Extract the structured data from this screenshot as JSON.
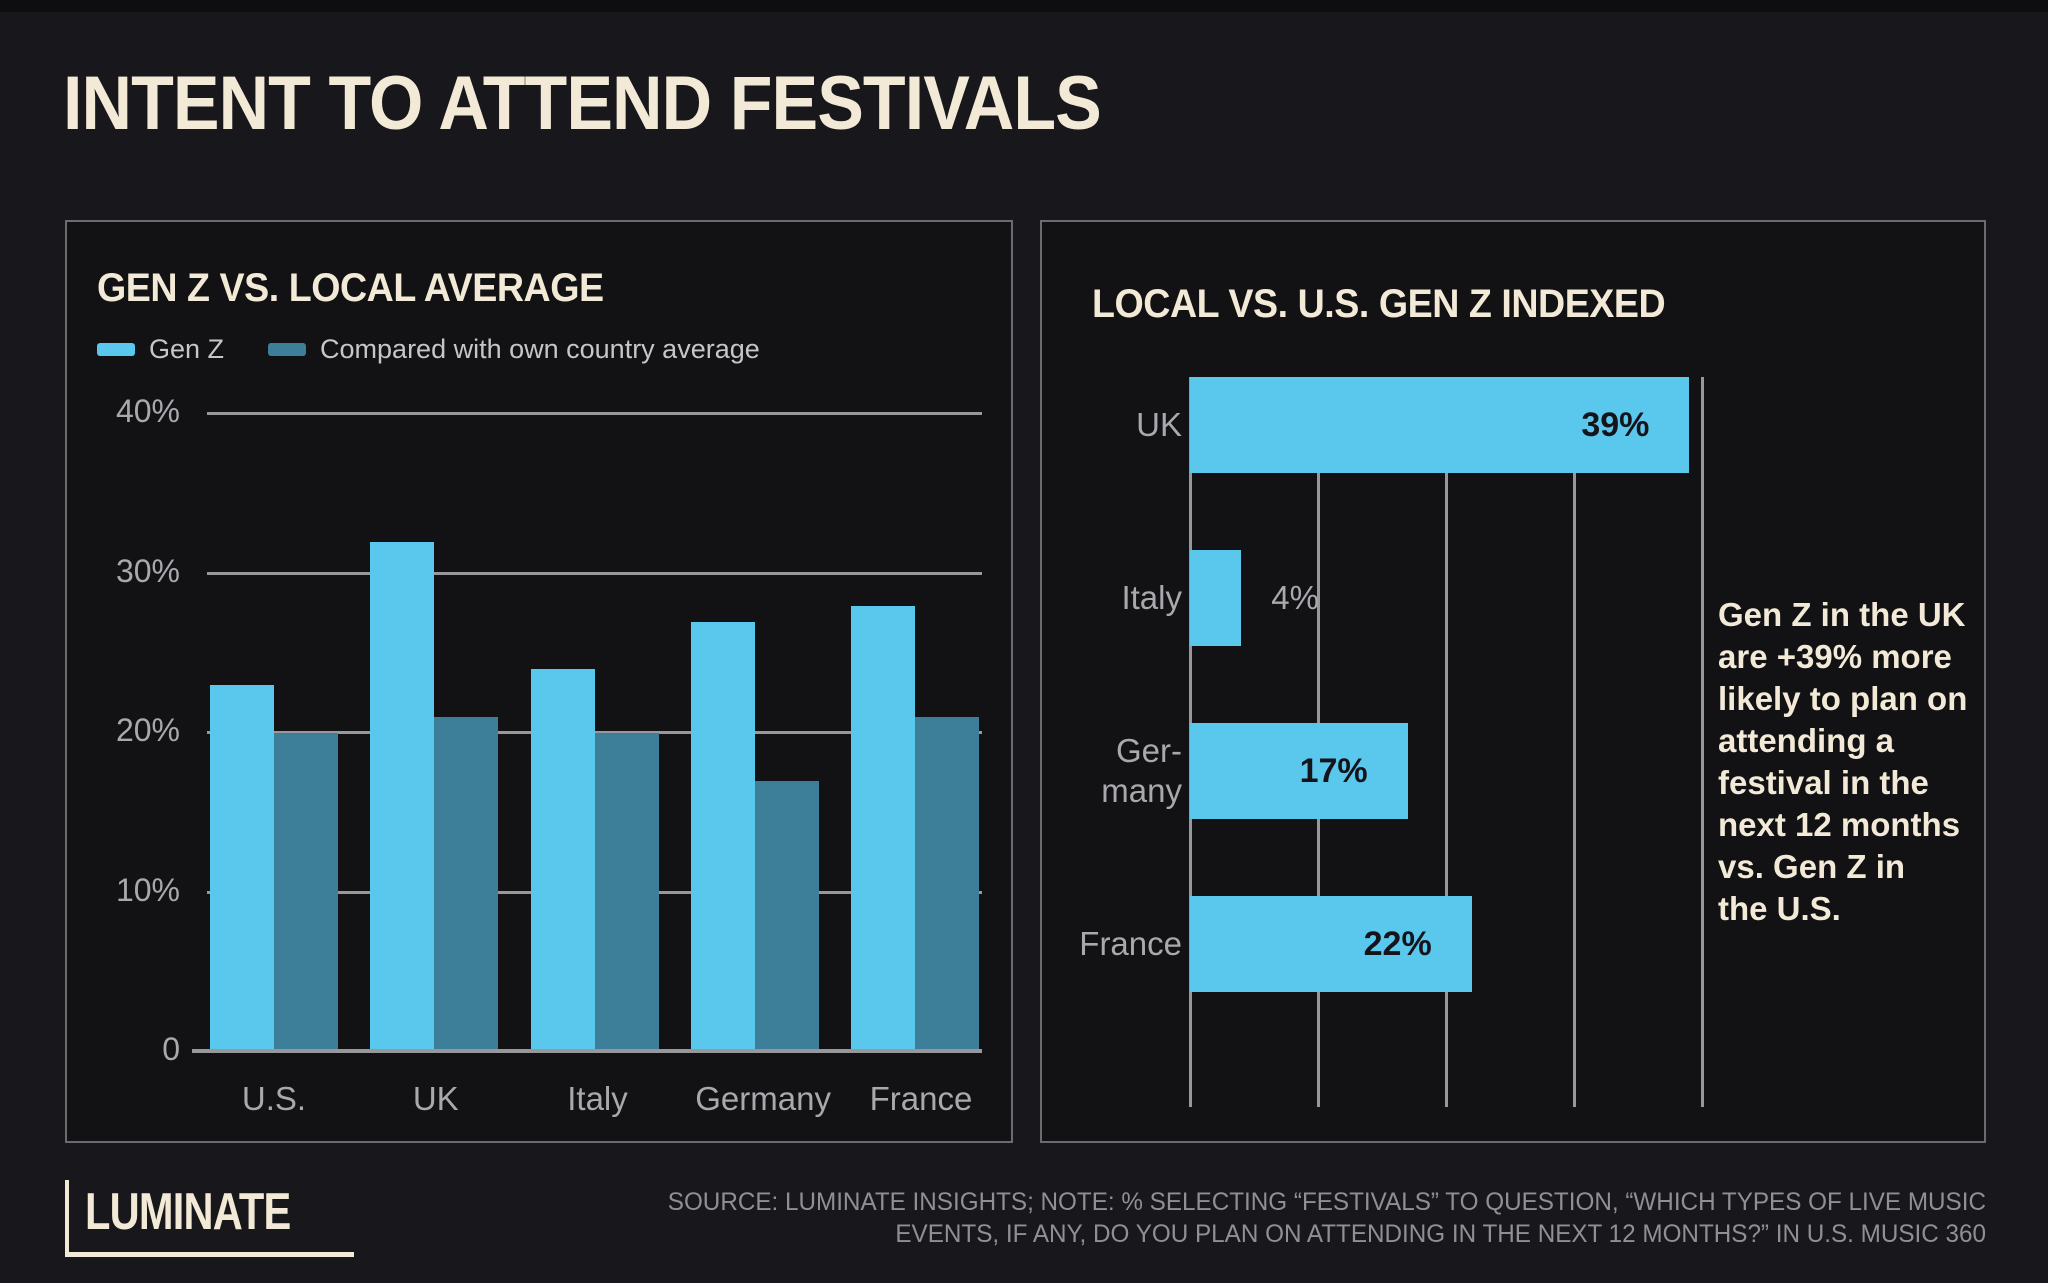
{
  "page": {
    "title": "INTENT TO ATTEND FESTIVALS",
    "footer": {
      "logo": "LUMINATE",
      "source_line1": "SOURCE: LUMINATE INSIGHTS; NOTE: % SELECTING “FESTIVALS” TO QUESTION, “WHICH TYPES OF LIVE MUSIC",
      "source_line2": "EVENTS, IF ANY, DO YOU PLAN ON ATTENDING IN THE NEXT 12 MONTHS?” IN U.S. MUSIC 360"
    },
    "colors": {
      "background": "#18181c",
      "panel_background": "#121215",
      "panel_border": "#6b6b70",
      "cream": "#f2e9d6",
      "gen_z_blue": "#5ac7ed",
      "country_avg_teal": "#3d7f98",
      "gridline_gray": "#98989c",
      "label_gray": "#a8a8ad",
      "bar_value_dark": "#14141a"
    }
  },
  "chart_data": [
    {
      "type": "bar",
      "title": "GEN Z VS. LOCAL AVERAGE",
      "categories": [
        "U.S.",
        "UK",
        "Italy",
        "Germany",
        "France"
      ],
      "series": [
        {
          "name": "Gen Z",
          "color": "#5ac7ed",
          "values": [
            23,
            32,
            24,
            27,
            28
          ]
        },
        {
          "name": "Compared with own country average",
          "color": "#3d7f98",
          "values": [
            20,
            21,
            20,
            17,
            21
          ]
        }
      ],
      "yticks": [
        {
          "value": 40,
          "label": "40%"
        },
        {
          "value": 30,
          "label": "30%"
        },
        {
          "value": 20,
          "label": "20%"
        },
        {
          "value": 10,
          "label": "10%"
        },
        {
          "value": 0,
          "label": "0"
        }
      ],
      "ylim": [
        0,
        41.4
      ],
      "grid": true,
      "legend_position": "top"
    },
    {
      "type": "bar-horizontal",
      "title": "LOCAL VS. U.S. GEN Z INDEXED",
      "bars": [
        {
          "category": "UK",
          "label_lines": [
            "UK"
          ],
          "value": 39,
          "value_label": "39%",
          "value_label_position": "inside"
        },
        {
          "category": "Italy",
          "label_lines": [
            "Italy"
          ],
          "value": 4,
          "value_label": "4%",
          "value_label_position": "outside"
        },
        {
          "category": "Germany",
          "label_lines": [
            "Ger-",
            "many"
          ],
          "value": 17,
          "value_label": "17%",
          "value_label_position": "inside"
        },
        {
          "category": "France",
          "label_lines": [
            "France"
          ],
          "value": 22,
          "value_label": "22%",
          "value_label_position": "inside"
        }
      ],
      "bar_color": "#5ac7ed",
      "xticks": [
        {
          "value": 0,
          "label": "0%"
        },
        {
          "value": 10,
          "label": "10%"
        },
        {
          "value": 20,
          "label": "20%"
        },
        {
          "value": 30,
          "label": "30%"
        },
        {
          "value": 40,
          "label": "40%"
        }
      ],
      "xlim": [
        0,
        41
      ],
      "grid": true,
      "annotation_lines": [
        "Gen Z in the UK",
        "are +39% more",
        "likely to plan on",
        "attending a",
        "festival in the",
        "next 12 months",
        "vs. Gen Z in",
        "the U.S."
      ]
    }
  ]
}
